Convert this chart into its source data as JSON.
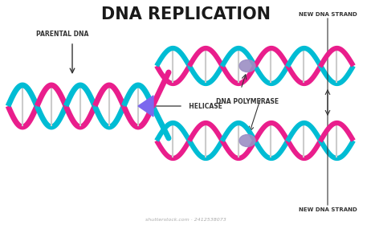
{
  "title": "DNA REPLICATION",
  "title_fontsize": 15,
  "title_fontweight": "bold",
  "bg_color": "#ffffff",
  "strand1_color": "#00BCD4",
  "strand2_color": "#E91E8C",
  "rung_color": "#cccccc",
  "helicase_color": "#7B68EE",
  "polymerase_color": "#9B8EC4",
  "label_color": "#333333",
  "arrow_color": "#333333",
  "labels": {
    "parental": "PARENTAL DNA",
    "helicase": "HELICASE",
    "polymerase": "DNA POLYMERASE",
    "new_top": "NEW DNA STRAND",
    "new_bot": "NEW DNA STRAND",
    "watermark": "shutterstock.com · 2412538073"
  }
}
